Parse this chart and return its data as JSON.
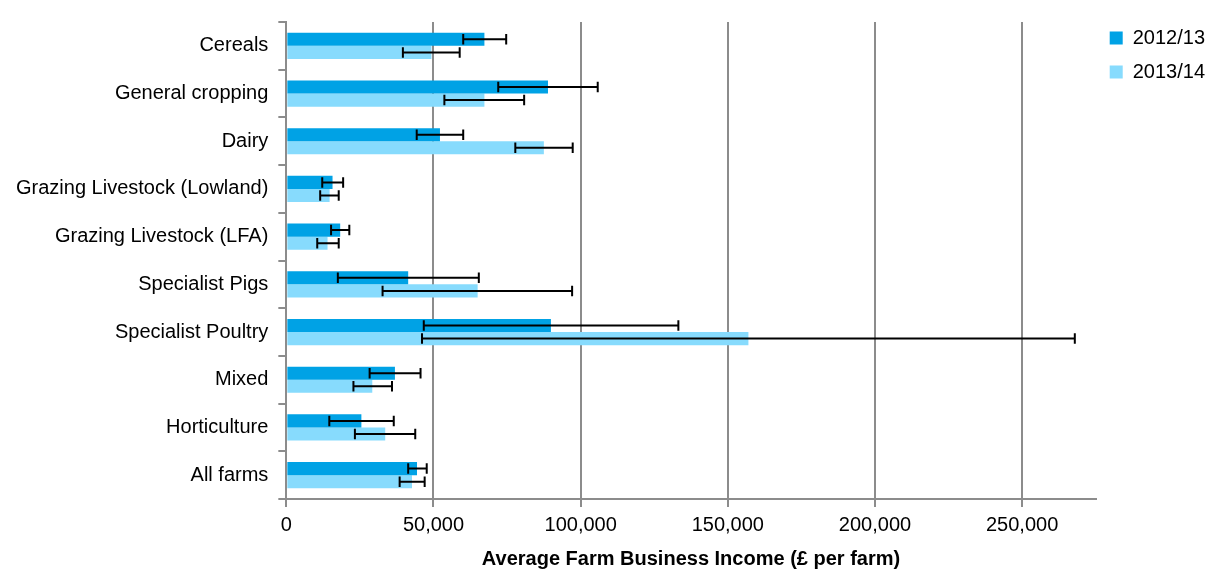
{
  "chart_data": {
    "type": "bar",
    "orientation": "horizontal",
    "xlabel": "Average Farm Business Income (£ per farm)",
    "categories": [
      "Cereals",
      "General cropping",
      "Dairy",
      "Grazing Livestock (Lowland)",
      "Grazing Livestock (LFA)",
      "Specialist Pigs",
      "Specialist Poultry",
      "Mixed",
      "Horticulture",
      "All farms"
    ],
    "series": [
      {
        "name": "2012/13",
        "color": "#00a2e5",
        "values": [
          67300,
          88900,
          52200,
          15700,
          18300,
          41400,
          89900,
          36900,
          25500,
          44400
        ],
        "errors": [
          [
            60100,
            74700
          ],
          [
            72000,
            105800
          ],
          [
            44300,
            60100
          ],
          [
            12200,
            19300
          ],
          [
            15200,
            21400
          ],
          [
            17500,
            65400
          ],
          [
            46700,
            133200
          ],
          [
            28300,
            45600
          ],
          [
            14600,
            36500
          ],
          [
            41400,
            47700
          ]
        ]
      },
      {
        "name": "2013/14",
        "color": "#87dbfd",
        "values": [
          49300,
          67300,
          87500,
          14700,
          14000,
          65000,
          157000,
          29200,
          33600,
          42700
        ],
        "errors": [
          [
            39600,
            58900
          ],
          [
            53700,
            80800
          ],
          [
            77800,
            97300
          ],
          [
            11500,
            17800
          ],
          [
            10500,
            17800
          ],
          [
            32700,
            97100
          ],
          [
            46100,
            267900
          ],
          [
            22800,
            35900
          ],
          [
            23300,
            43800
          ],
          [
            38500,
            47000
          ]
        ]
      }
    ],
    "xlim": [
      0,
      275000
    ],
    "xticks": [
      0,
      {
        "value": 50000,
        "label": "50,000"
      },
      {
        "value": 100000,
        "label": "100,000"
      },
      {
        "value": 150000,
        "label": "150,000"
      },
      {
        "value": 200000,
        "label": "200,000"
      },
      {
        "value": 250000,
        "label": "250,000"
      }
    ],
    "grid": "x",
    "legend": "top right"
  }
}
